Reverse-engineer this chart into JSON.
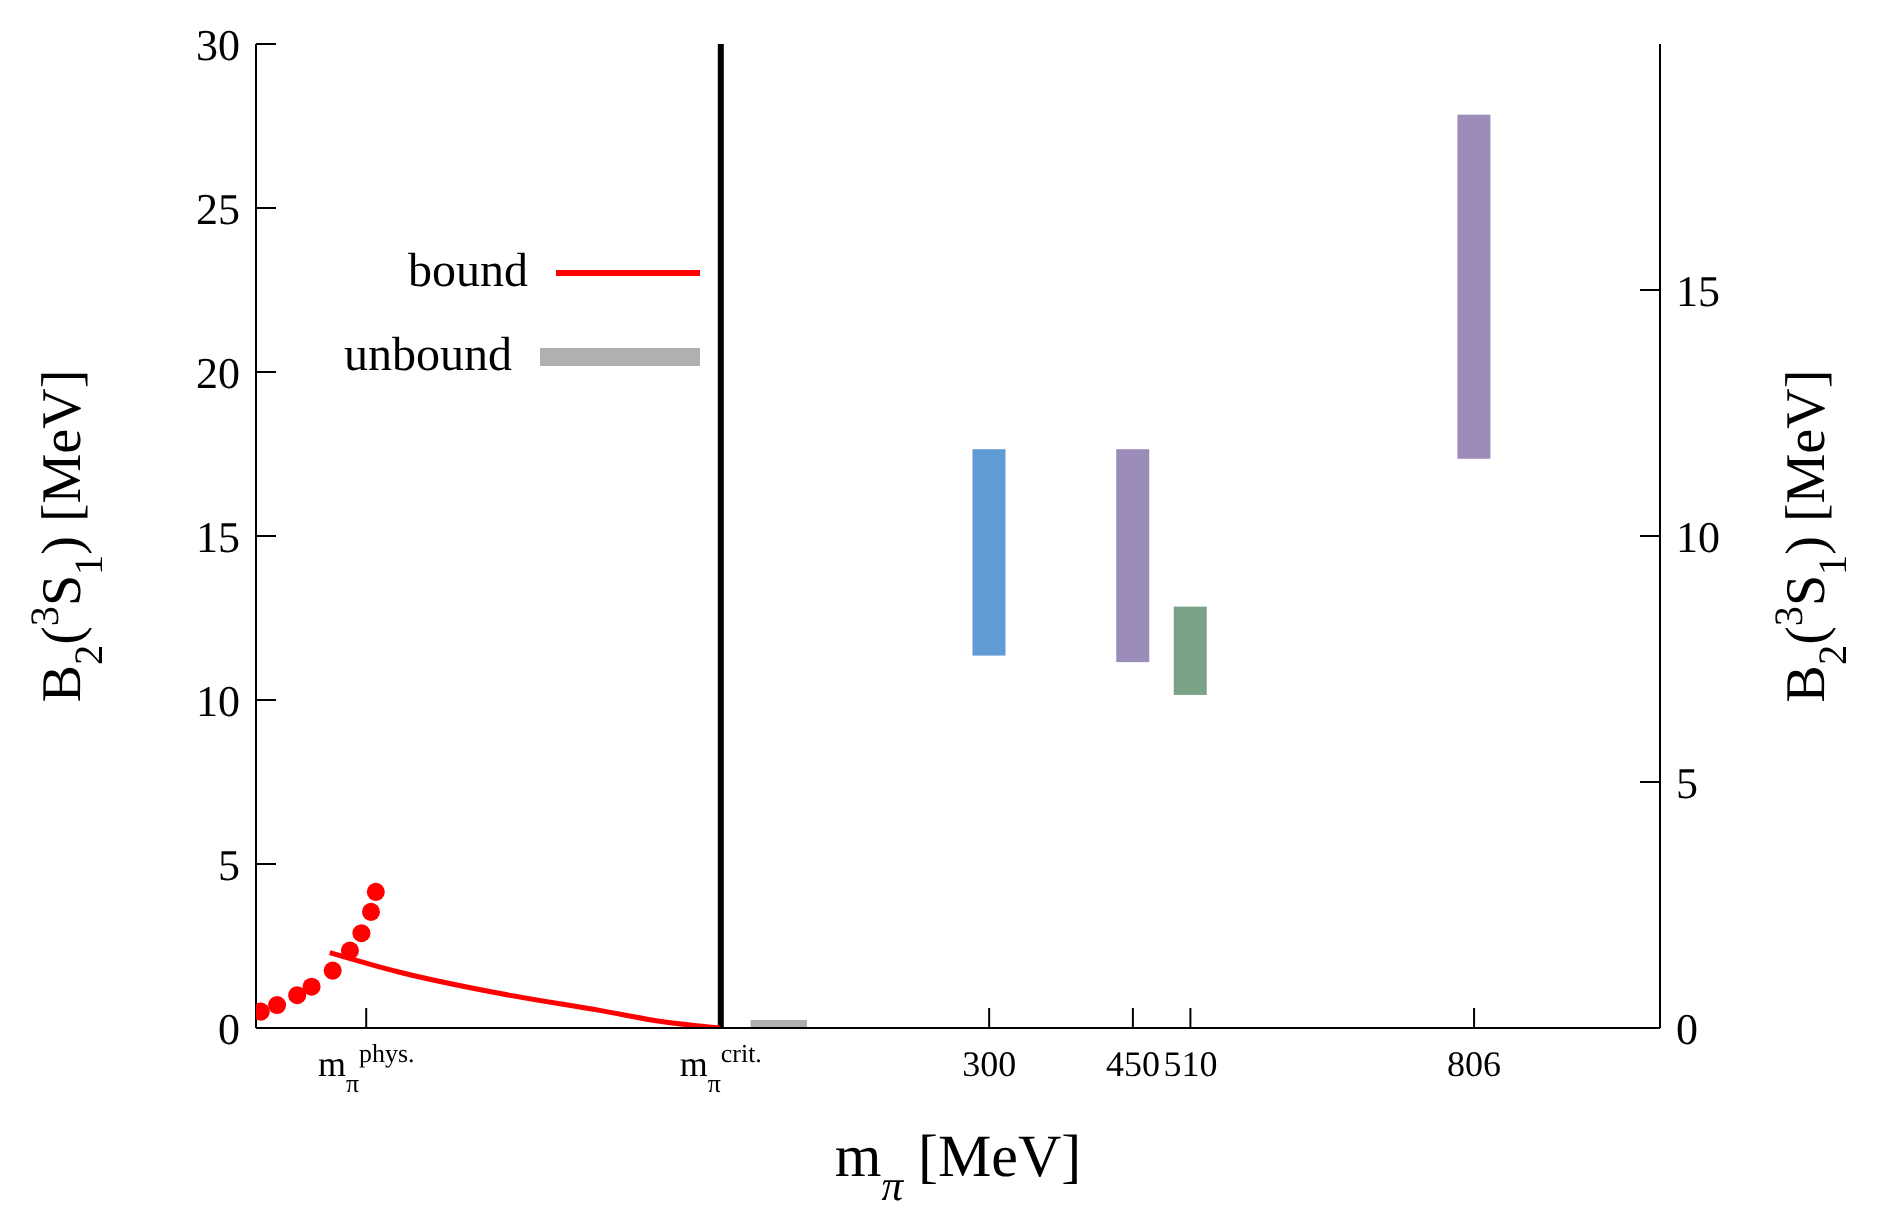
{
  "chart_data": {
    "type": "bar",
    "xlabel": "m$_{π}$ [MeV]",
    "ylabel": "B$_{2}$($^{3}$S$_{1}$) [MeV]",
    "y2label": "B$_{2}$($^{3}$S$_{1}$) [MeV]",
    "xlim": [
      -465,
      1000
    ],
    "xticks": [
      {
        "value": -350,
        "label": "m$_{π}$$^{phys.}$"
      },
      {
        "value": 20,
        "label": "m$_{π}$$^{crit.}$"
      },
      300,
      450,
      510,
      806
    ],
    "ylim": [
      0,
      30
    ],
    "yticks": [
      0,
      5,
      10,
      15,
      20,
      25,
      30
    ],
    "y2lim": [
      0,
      20
    ],
    "y2ticks": [
      0,
      5,
      10,
      15
    ],
    "legend": "top left",
    "grid": false,
    "ref_lines": [
      {
        "axis": "x",
        "value": 20,
        "color": "#000000"
      }
    ],
    "series": [
      {
        "x": [
          300,
          450,
          510,
          806
        ],
        "base": [
          11.4,
          11.2,
          10.2,
          17.4
        ],
        "values": [
          6.2,
          6.4,
          2.6,
          10.4
        ],
        "colors": [
          "#72b6fb",
          "#b6a5db",
          "#8fbf9f",
          "#b6a5db"
        ]
      },
      {
        "type": "line",
        "name": "bound",
        "color": "#ff0000",
        "marker": "none",
        "x": [
          -388,
          -315,
          -210,
          -105,
          -42,
          20
        ],
        "values": [
          2.3,
          1.7,
          1.05,
          0.53,
          0.2,
          0
        ]
      },
      {
        "type": "line",
        "name": "unbound",
        "color": "#b0b0b0",
        "marker": "none",
        "x": [
          51,
          110
        ],
        "values": [
          0,
          0
        ]
      },
      {
        "type": "scatter",
        "color": "#ff0000",
        "marker": "circle",
        "x": [
          -460,
          -443,
          -422,
          -407,
          -385,
          -367,
          -355,
          -345,
          -340
        ],
        "values": [
          0.5,
          0.7,
          1.0,
          1.26,
          1.75,
          2.36,
          2.89,
          3.54,
          4.15
        ]
      }
    ]
  }
}
